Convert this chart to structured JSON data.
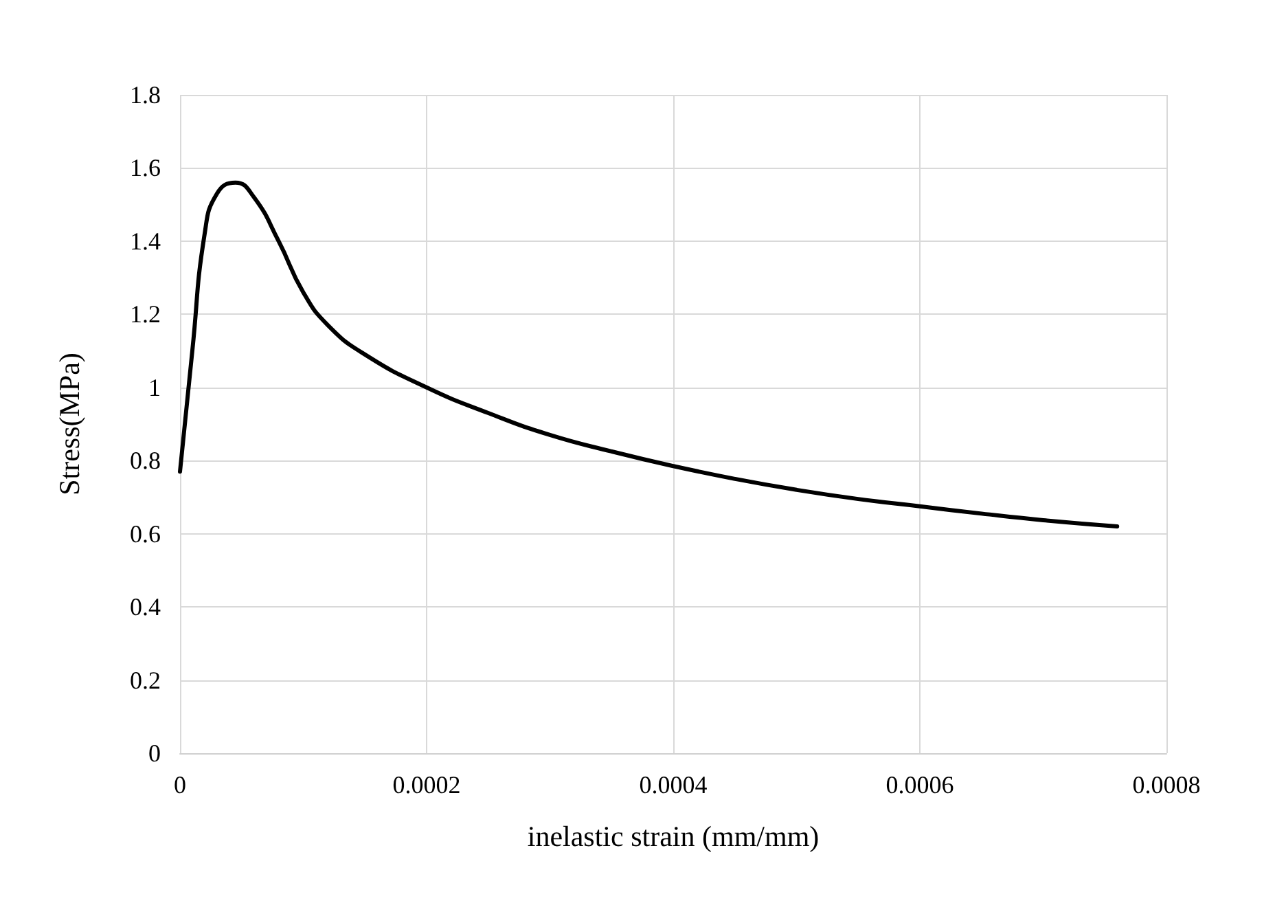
{
  "chart_data": {
    "type": "line",
    "xlabel": "inelastic strain (mm/mm)",
    "ylabel": "Stress(MPa)",
    "x": [
      0,
      1e-05,
      2e-05,
      3e-05,
      4.5e-05,
      6e-05,
      8e-05,
      0.0001,
      0.00012,
      0.00015,
      0.0002,
      0.00025,
      0.0003,
      0.00035,
      0.0004,
      0.00045,
      0.0005,
      0.00055,
      0.0006,
      0.00065,
      0.0007,
      0.00076
    ],
    "series": [
      {
        "color": "#000000",
        "values": [
          0.77,
          1.1,
          1.42,
          1.53,
          1.56,
          1.52,
          1.4,
          1.26,
          1.17,
          1.09,
          1.0,
          0.93,
          0.87,
          0.825,
          0.785,
          0.75,
          0.72,
          0.695,
          0.675,
          0.655,
          0.637,
          0.62
        ]
      }
    ],
    "xlim": [
      0,
      0.0008
    ],
    "xticks": [
      0,
      0.0002,
      0.0004,
      0.0006,
      0.0008
    ],
    "ylim": [
      0,
      1.8
    ],
    "yticks": [
      0,
      0.2,
      0.4,
      0.6,
      0.8,
      1,
      1.2,
      1.4,
      1.6,
      1.8
    ],
    "grid": true,
    "marker": "none",
    "line_style": "solid"
  }
}
